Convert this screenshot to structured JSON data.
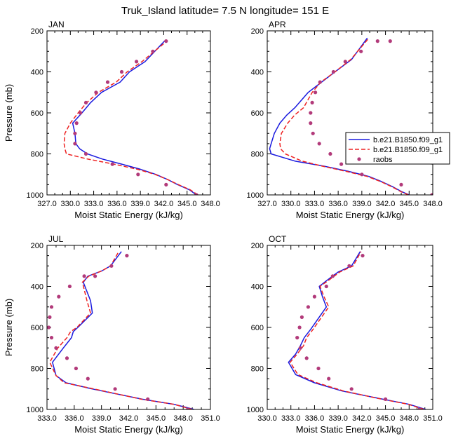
{
  "page_title": "Truk_Island  latitude= 7.5 N longitude= 151 E",
  "colors": {
    "model1": "#1a1adf",
    "model2": "#ee2222",
    "raobs": "#b23a7a",
    "axis": "#000000"
  },
  "legend": {
    "entries": [
      {
        "label": "b.e21.B1850.f09_g1",
        "style": "solid",
        "color": "#1a1adf"
      },
      {
        "label": "b.e21.B1850.f09_g1",
        "style": "dashed",
        "color": "#ee2222"
      },
      {
        "label": "raobs",
        "style": "marker",
        "color": "#b23a7a"
      }
    ],
    "placement": "right of APR panel"
  },
  "chart_data": [
    {
      "type": "line",
      "panel": "JAN",
      "title": "JAN",
      "xlabel": "Moist Static Energy (kJ/kg)",
      "ylabel": "Pressure (mb)",
      "xlim": [
        327.0,
        348.0
      ],
      "ylim": [
        1000,
        200
      ],
      "xticks": [
        327.0,
        330.0,
        333.0,
        336.0,
        339.0,
        342.0,
        345.0,
        348.0
      ],
      "xtick_labels": [
        "327.0",
        "330.0",
        "333.0",
        "336.0",
        "339.0",
        "342.0",
        "345.0",
        "348.0"
      ],
      "yticks": [
        200,
        400,
        600,
        800,
        1000
      ],
      "ytick_labels": [
        "200",
        "400",
        "600",
        "800",
        "1000"
      ],
      "series": [
        {
          "name": "b.e21.B1850.f09_g1 (solid)",
          "x": [
            346.2,
            345.3,
            343.8,
            342.5,
            341.0,
            339.0,
            336.6,
            334.1,
            332.2,
            331.2,
            330.7,
            330.6,
            330.3,
            331.5,
            332.6,
            334.0,
            336.4,
            337.6,
            339.6,
            342.1
          ],
          "y": [
            1000,
            975,
            950,
            925,
            900,
            875,
            850,
            825,
            800,
            775,
            750,
            700,
            650,
            600,
            550,
            500,
            450,
            400,
            350,
            250
          ]
        },
        {
          "name": "b.e21.B1850.f09_g1 (dashed)",
          "x": [
            346.4,
            345.4,
            343.9,
            342.5,
            340.9,
            338.6,
            335.6,
            332.2,
            329.5,
            329.3,
            329.2,
            329.3,
            330.0,
            331.0,
            332.1,
            333.6,
            335.9,
            337.3,
            339.2,
            342.4
          ],
          "y": [
            1000,
            975,
            950,
            925,
            900,
            875,
            850,
            825,
            800,
            775,
            750,
            700,
            650,
            600,
            550,
            500,
            450,
            400,
            350,
            250
          ]
        },
        {
          "name": "raobs",
          "x": [
            346.2,
            342.3,
            338.7,
            335.4,
            332.0,
            330.6,
            330.6,
            330.8,
            331.3,
            332.0,
            333.3,
            334.8,
            336.6,
            338.5,
            340.6,
            342.3
          ],
          "y": [
            1000,
            950,
            900,
            850,
            800,
            750,
            700,
            650,
            600,
            550,
            500,
            450,
            400,
            350,
            300,
            250
          ]
        }
      ]
    },
    {
      "type": "line",
      "panel": "APR",
      "title": "APR",
      "xlabel": "Moist Static Energy (kJ/kg)",
      "ylabel": "",
      "xlim": [
        327.0,
        348.0
      ],
      "ylim": [
        1000,
        200
      ],
      "xticks": [
        327.0,
        330.0,
        333.0,
        336.0,
        339.0,
        342.0,
        345.0,
        348.0
      ],
      "xtick_labels": [
        "327.0",
        "330.0",
        "333.0",
        "336.0",
        "339.0",
        "342.0",
        "345.0",
        "348.0"
      ],
      "yticks": [
        200,
        400,
        600,
        800,
        1000
      ],
      "ytick_labels": [
        "200",
        "400",
        "600",
        "800",
        "1000"
      ],
      "series": [
        {
          "name": "b.e21.B1850.f09_g1 (solid)",
          "x": [
            345.0,
            344.1,
            342.9,
            341.5,
            339.9,
            337.3,
            334.2,
            330.5,
            327.5,
            327.3,
            327.5,
            327.9,
            328.6,
            329.5,
            330.5,
            332.2,
            333.9,
            335.6,
            337.7,
            339.7
          ],
          "y": [
            1000,
            985,
            960,
            935,
            910,
            885,
            860,
            835,
            800,
            775,
            750,
            700,
            650,
            610,
            575,
            500,
            450,
            400,
            340,
            235
          ]
        },
        {
          "name": "b.e21.B1850.f09_g1 (dashed)",
          "x": [
            344.9,
            344.0,
            342.8,
            341.4,
            339.7,
            337.0,
            334.0,
            331.4,
            329.3,
            328.7,
            328.6,
            328.8,
            329.6,
            330.5,
            331.6,
            332.7,
            333.8,
            335.6,
            337.6,
            339.9
          ],
          "y": [
            1000,
            985,
            960,
            935,
            910,
            885,
            860,
            835,
            800,
            775,
            750,
            700,
            650,
            610,
            575,
            500,
            450,
            400,
            340,
            235
          ]
        },
        {
          "name": "raobs",
          "x": [
            347.9,
            344.0,
            339.0,
            336.4,
            335.0,
            333.6,
            332.8,
            332.5,
            332.5,
            332.7,
            333.1,
            333.7,
            335.4,
            336.9,
            338.9,
            341.0,
            342.6
          ],
          "y": [
            1000,
            950,
            900,
            850,
            800,
            750,
            700,
            650,
            600,
            550,
            500,
            450,
            400,
            350,
            300,
            250,
            250
          ]
        }
      ]
    },
    {
      "type": "line",
      "panel": "JUL",
      "title": "JUL",
      "xlabel": "Moist Static Energy (kJ/kg)",
      "ylabel": "Pressure (mb)",
      "xlim": [
        333.0,
        351.0
      ],
      "ylim": [
        1000,
        200
      ],
      "xticks": [
        333.0,
        336.0,
        339.0,
        342.0,
        345.0,
        348.0,
        351.0
      ],
      "xtick_labels": [
        "333.0",
        "336.0",
        "339.0",
        "342.0",
        "345.0",
        "348.0",
        "351.0"
      ],
      "yticks": [
        200,
        400,
        600,
        800,
        1000
      ],
      "ytick_labels": [
        "200",
        "400",
        "600",
        "800",
        "1000"
      ],
      "series": [
        {
          "name": "b.e21.B1850.f09_g1 (solid)",
          "x": [
            349.2,
            347.0,
            343.5,
            338.0,
            335.1,
            334.0,
            333.6,
            334.8,
            335.7,
            335.9,
            336.4,
            338.0,
            337.8,
            337.0,
            337.5,
            339.0,
            340.0,
            341.2
          ],
          "y": [
            1000,
            975,
            950,
            900,
            870,
            835,
            770,
            700,
            650,
            620,
            600,
            530,
            470,
            380,
            350,
            325,
            300,
            230
          ]
        },
        {
          "name": "b.e21.B1850.f09_g1 (dashed)",
          "x": [
            349.0,
            347.0,
            343.4,
            338.2,
            334.9,
            334.0,
            333.3,
            334.2,
            335.2,
            335.6,
            336.3,
            337.8,
            337.4,
            336.9,
            337.6,
            339.0,
            340.0,
            340.9
          ],
          "y": [
            1000,
            975,
            950,
            900,
            870,
            835,
            770,
            700,
            650,
            620,
            600,
            530,
            470,
            380,
            350,
            325,
            300,
            230
          ]
        },
        {
          "name": "raobs",
          "x": [
            348.5,
            344.1,
            340.5,
            337.5,
            336.2,
            335.2,
            334.0,
            333.5,
            333.2,
            333.3,
            333.5,
            334.3,
            335.5,
            337.1,
            338.3,
            340.1,
            341.8
          ],
          "y": [
            1000,
            950,
            900,
            850,
            800,
            750,
            700,
            650,
            600,
            550,
            500,
            450,
            400,
            350,
            350,
            300,
            250
          ]
        }
      ]
    },
    {
      "type": "line",
      "panel": "OCT",
      "title": "OCT",
      "xlabel": "Moist Static Energy (kJ/kg)",
      "ylabel": "",
      "xlim": [
        330.0,
        351.0
      ],
      "ylim": [
        1000,
        200
      ],
      "xticks": [
        330.0,
        333.0,
        336.0,
        339.0,
        342.0,
        345.0,
        348.0,
        351.0
      ],
      "xtick_labels": [
        "330.0",
        "333.0",
        "336.0",
        "339.0",
        "342.0",
        "345.0",
        "348.0",
        "351.0"
      ],
      "yticks": [
        200,
        400,
        600,
        800,
        1000
      ],
      "ytick_labels": [
        "200",
        "400",
        "600",
        "800",
        "1000"
      ],
      "series": [
        {
          "name": "b.e21.B1850.f09_g1 (solid)",
          "x": [
            350.1,
            348.0,
            344.0,
            339.5,
            336.0,
            333.6,
            332.7,
            333.6,
            334.2,
            334.7,
            335.5,
            337.5,
            337.0,
            336.6,
            337.6,
            339.0,
            340.7,
            341.8
          ],
          "y": [
            1000,
            975,
            945,
            910,
            870,
            830,
            770,
            730,
            690,
            650,
            610,
            500,
            450,
            400,
            370,
            330,
            300,
            230
          ]
        },
        {
          "name": "b.e21.B1850.f09_g1 (dashed)",
          "x": [
            349.9,
            347.9,
            343.9,
            339.7,
            336.3,
            333.9,
            332.9,
            333.8,
            334.6,
            335.0,
            335.8,
            337.8,
            337.2,
            336.7,
            337.8,
            339.2,
            340.9,
            341.9
          ],
          "y": [
            1000,
            975,
            945,
            910,
            870,
            830,
            770,
            730,
            690,
            650,
            610,
            500,
            450,
            400,
            370,
            330,
            300,
            230
          ]
        },
        {
          "name": "raobs",
          "x": [
            349.3,
            345.0,
            340.7,
            337.8,
            336.5,
            335.0,
            334.2,
            333.8,
            334.1,
            334.4,
            335.2,
            336.0,
            337.5,
            338.3,
            340.4,
            342.1
          ],
          "y": [
            1000,
            950,
            900,
            850,
            800,
            750,
            700,
            650,
            600,
            550,
            500,
            450,
            400,
            350,
            300,
            250
          ]
        }
      ]
    }
  ]
}
